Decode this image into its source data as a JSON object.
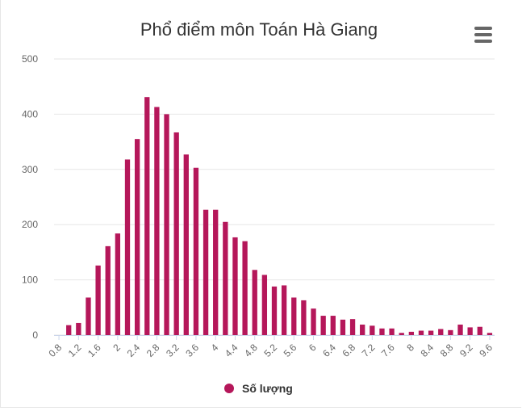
{
  "chart_data": {
    "type": "bar",
    "title": "Phổ điểm môn Toán Hà Giang",
    "xlabel": "",
    "ylabel": "",
    "ylim": [
      0,
      500
    ],
    "yticks": [
      0,
      100,
      200,
      300,
      400,
      500
    ],
    "x_tick_labels": [
      "0.8",
      "1.2",
      "1.6",
      "2",
      "2.4",
      "2.8",
      "3.2",
      "3.6",
      "4",
      "4.4",
      "4.8",
      "5.2",
      "5.6",
      "6",
      "6.4",
      "6.8",
      "7.2",
      "7.6",
      "8",
      "8.4",
      "8.8",
      "9.2",
      "9.6"
    ],
    "grid": true,
    "legend_position": "bottom-center",
    "categories": [
      "0.8",
      "1",
      "1.2",
      "1.4",
      "1.6",
      "1.8",
      "2",
      "2.2",
      "2.4",
      "2.6",
      "2.8",
      "3",
      "3.2",
      "3.4",
      "3.6",
      "3.8",
      "4",
      "4.2",
      "4.4",
      "4.6",
      "4.8",
      "5",
      "5.2",
      "5.4",
      "5.6",
      "5.8",
      "6",
      "6.2",
      "6.4",
      "6.6",
      "6.8",
      "7",
      "7.2",
      "7.4",
      "7.6",
      "7.8",
      "8",
      "8.2",
      "8.4",
      "8.6",
      "8.8",
      "9",
      "9.2",
      "9.4",
      "9.6"
    ],
    "series": [
      {
        "name": "Số lượng",
        "color": "#b5175a",
        "values": [
          0,
          18,
          22,
          68,
          126,
          161,
          184,
          318,
          355,
          431,
          413,
          400,
          367,
          327,
          303,
          227,
          227,
          205,
          177,
          170,
          118,
          109,
          88,
          90,
          68,
          63,
          48,
          35,
          35,
          28,
          29,
          19,
          17,
          12,
          12,
          4,
          6,
          8,
          8,
          11,
          9,
          19,
          14,
          15,
          4
        ]
      }
    ]
  },
  "legend": {
    "label": "Số lượng",
    "color": "#b5175a"
  },
  "menu": {
    "icon": "hamburger-menu-icon"
  }
}
